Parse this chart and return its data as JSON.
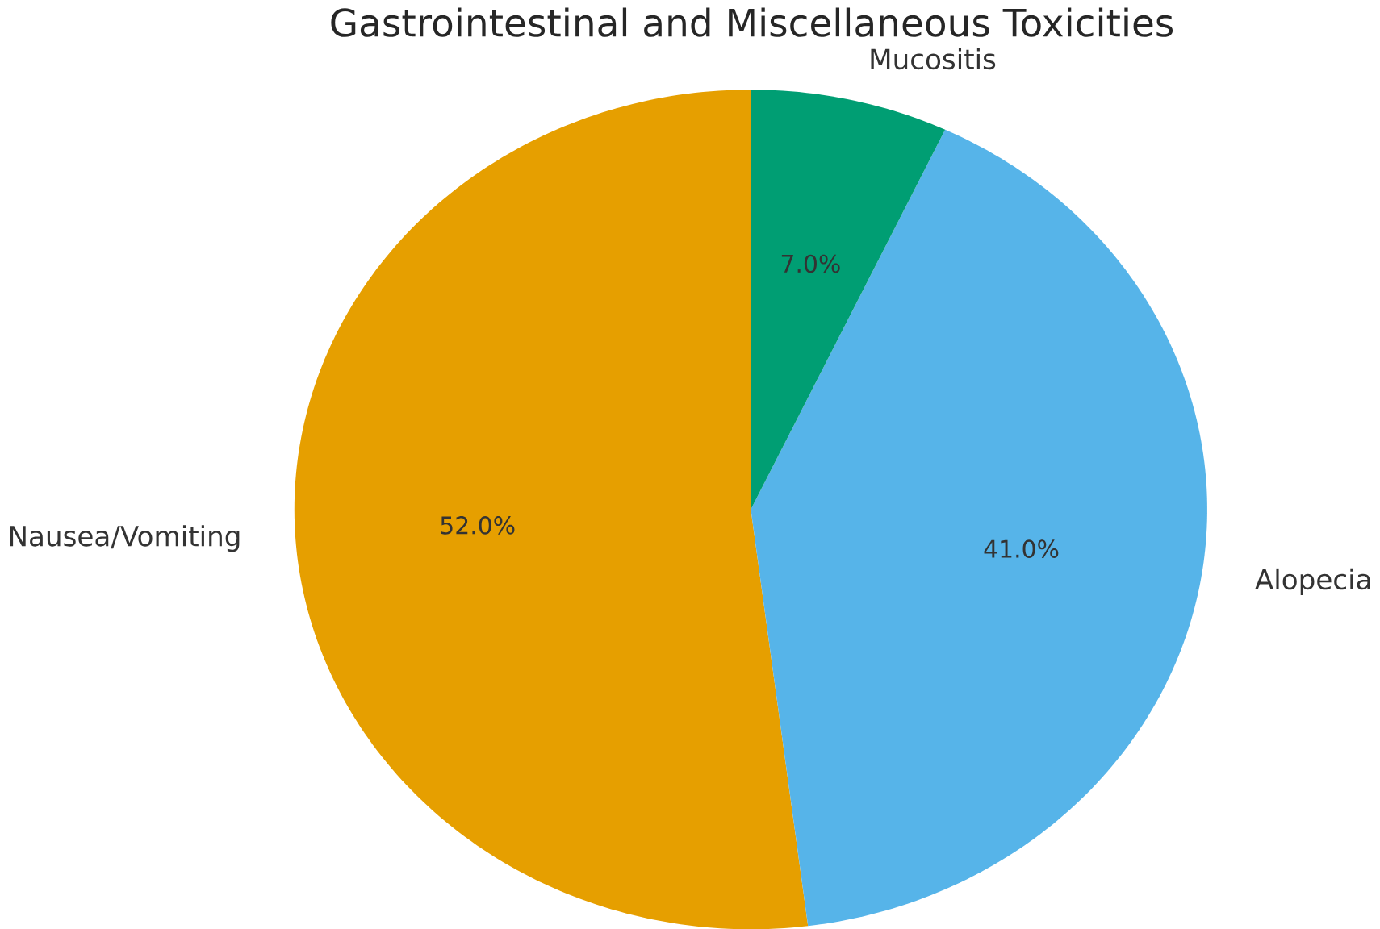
{
  "chart_data": {
    "type": "pie",
    "title": "Gastrointestinal and Miscellaneous Toxicities",
    "categories": [
      "Nausea/Vomiting",
      "Alopecia",
      "Mucositis"
    ],
    "values": [
      52,
      41,
      7
    ],
    "value_labels": [
      "52.0%",
      "41.0%",
      "7.0%"
    ],
    "colors": [
      "#e69f00",
      "#56b4e9",
      "#009e73"
    ]
  }
}
